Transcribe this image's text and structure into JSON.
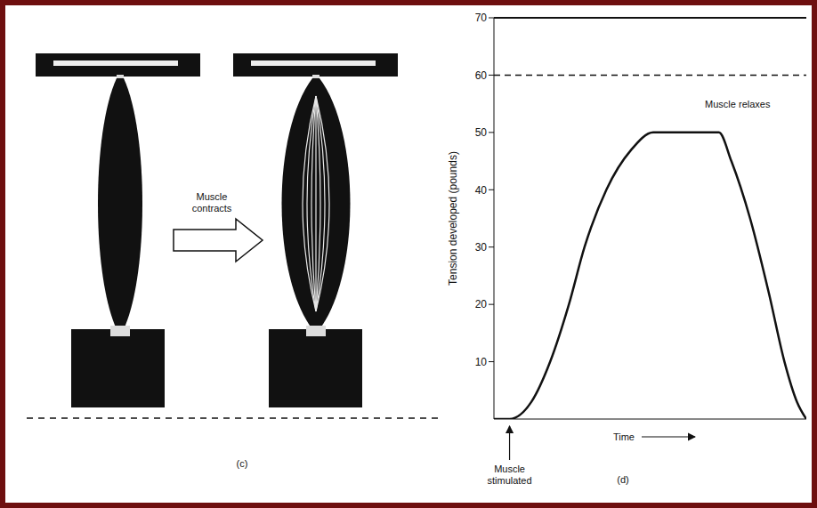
{
  "panel_c": {
    "label": "(c)",
    "arrow_text": "Muscle contracts"
  },
  "chart_data": {
    "type": "line",
    "panel_label": "(d)",
    "x": [
      0,
      5,
      12,
      18,
      24,
      29,
      36,
      44,
      51,
      72,
      76,
      82,
      88,
      93,
      97,
      100
    ],
    "values": [
      0,
      0,
      3,
      10,
      20,
      30,
      40,
      47,
      50,
      50,
      45,
      35,
      22,
      10,
      3,
      0
    ],
    "color": "#111111",
    "xlabel": "Time",
    "ylabel": "Tension developed (pounds)",
    "xlim": [
      0,
      100
    ],
    "ylim": [
      0,
      70
    ],
    "yticks": [
      10,
      20,
      30,
      40,
      50,
      60,
      70
    ],
    "tick_labels": "y",
    "reference_lines": [
      {
        "value": 60,
        "line_style": "dashed"
      },
      {
        "value": 70,
        "line_style": "solid"
      }
    ],
    "annotations": [
      {
        "text": "Muscle relaxes",
        "x": 78,
        "y": 55
      },
      {
        "text": "Muscle stimulated",
        "x": 5,
        "y": 0
      }
    ]
  }
}
